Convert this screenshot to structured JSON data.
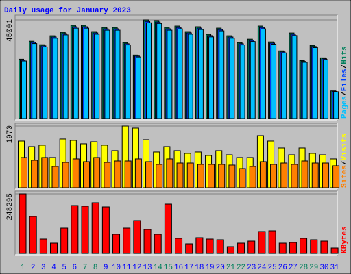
{
  "title": "Daily usage for January 2023",
  "legend_separator": "/",
  "categories": [
    "1",
    "2",
    "3",
    "4",
    "5",
    "6",
    "7",
    "8",
    "9",
    "10",
    "11",
    "12",
    "13",
    "14",
    "15",
    "16",
    "17",
    "18",
    "19",
    "20",
    "21",
    "22",
    "23",
    "24",
    "25",
    "26",
    "27",
    "28",
    "29",
    "30",
    "31"
  ],
  "category_colors": [
    "#00805c",
    "#0000ff",
    "#0000ff",
    "#0000ff",
    "#0000ff",
    "#0000ff",
    "#00805c",
    "#00805c",
    "#0000ff",
    "#0000ff",
    "#0000ff",
    "#0000ff",
    "#0000ff",
    "#00805c",
    "#00805c",
    "#0000ff",
    "#0000ff",
    "#0000ff",
    "#0000ff",
    "#0000ff",
    "#00805c",
    "#00805c",
    "#0000ff",
    "#0000ff",
    "#0000ff",
    "#0000ff",
    "#0000ff",
    "#00805c",
    "#00805c",
    "#0000ff",
    "#0000ff"
  ],
  "chart_data": [
    {
      "type": "bar",
      "ylim": [
        0,
        45001
      ],
      "yticks": [
        45001
      ],
      "series": [
        {
          "name": "Pages",
          "color": "#00c0ff",
          "values": [
            26252,
            34189,
            32663,
            36631,
            38158,
            41210,
            41210,
            38462,
            40294,
            40294,
            33578,
            28083,
            43651,
            43346,
            40294,
            40905,
            38462,
            40599,
            37241,
            39989,
            36631,
            33578,
            35105,
            40905,
            33884,
            29916,
            37852,
            25642,
            32357,
            26863,
            12210
          ]
        },
        {
          "name": "Files",
          "color": "#0040ff",
          "values": [
            26658,
            34717,
            33168,
            37198,
            38748,
            41848,
            41848,
            39057,
            40917,
            40917,
            34098,
            28518,
            44326,
            44017,
            40917,
            41537,
            39057,
            41227,
            37817,
            40608,
            37198,
            34098,
            35648,
            41537,
            34408,
            30378,
            38438,
            26038,
            32858,
            27279,
            12399
          ]
        },
        {
          "name": "Hits",
          "color": "#00805c",
          "values": [
            27064,
            35246,
            33673,
            37764,
            39338,
            42485,
            42485,
            39652,
            41540,
            41540,
            34617,
            28952,
            45001,
            44687,
            41540,
            42170,
            39652,
            41855,
            38393,
            41226,
            37764,
            34617,
            36191,
            42170,
            34932,
            30841,
            39023,
            26435,
            33358,
            27694,
            12588
          ]
        }
      ]
    },
    {
      "type": "bar",
      "ylim": [
        0,
        1970
      ],
      "yticks": [
        1970
      ],
      "series": [
        {
          "name": "Sites",
          "color": "#ff8000",
          "values": [
            964,
            876,
            964,
            679,
            810,
            920,
            832,
            964,
            810,
            854,
            854,
            920,
            832,
            745,
            920,
            788,
            788,
            745,
            745,
            745,
            723,
            613,
            679,
            832,
            745,
            788,
            745,
            854,
            788,
            788,
            701
          ]
        },
        {
          "name": "Visits",
          "color": "#ffff00",
          "values": [
            1489,
            1314,
            1358,
            964,
            1555,
            1511,
            1402,
            1467,
            1358,
            1183,
            1970,
            1905,
            1533,
            1139,
            1314,
            1183,
            1095,
            1139,
            1029,
            1183,
            1051,
            964,
            964,
            1664,
            1489,
            1270,
            1051,
            1270,
            1095,
            1051,
            920
          ]
        }
      ]
    },
    {
      "type": "bar",
      "ylim": [
        0,
        248295
      ],
      "yticks": [
        248295
      ],
      "series": [
        {
          "name": "KBytes",
          "color": "#ff0000",
          "values": [
            248295,
            154116,
            59934,
            42810,
            105598,
            199780,
            196926,
            211196,
            194072,
            79912,
            105598,
            136992,
            99890,
            79912,
            205488,
            62788,
            39956,
            65642,
            59934,
            57080,
            28540,
            42810,
            51372,
            91328,
            94182,
            42810,
            45664,
            62788,
            57080,
            51372,
            22832
          ]
        }
      ]
    }
  ]
}
